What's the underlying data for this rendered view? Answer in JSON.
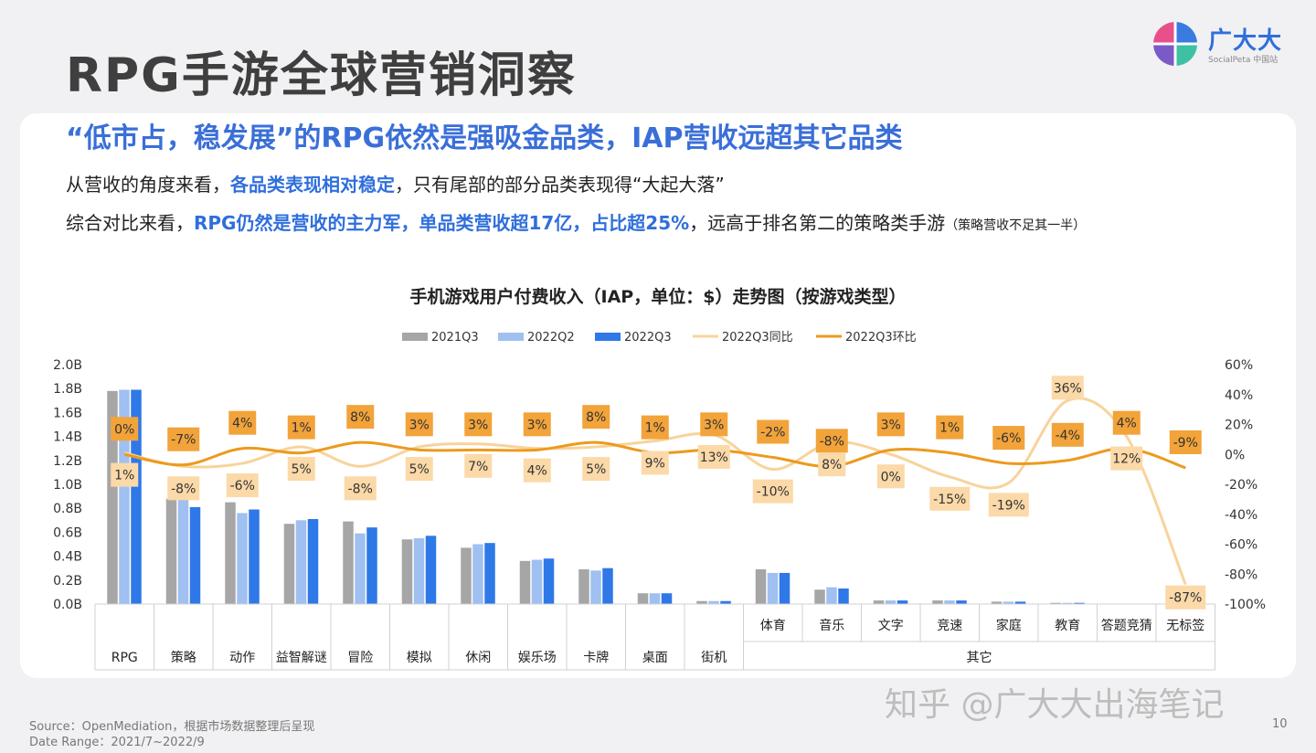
{
  "header": {
    "title": "RPG手游全球营销洞察",
    "logo_text": "广大大",
    "logo_sub": "SocialPeta 中国站"
  },
  "headline": "“低市占，稳发展”的RPG依然是强吸金品类，IAP营收远超其它品类",
  "body": {
    "line1": {
      "pre": "从营收的角度来看，",
      "hl": "各品类表现相对稳定",
      "post": "，只有尾部的部分品类表现得“大起大落”"
    },
    "line2": {
      "pre": "综合对比来看，",
      "hl": "RPG仍然是营收的主力军，单品类营收超17亿，占比超25%",
      "post": "，远高于排名第二的策略类手游",
      "note": "（策略营收不足其一半）"
    }
  },
  "footer": {
    "source": "Source：OpenMediation，根据市场数据整理后呈现",
    "range": "Date Range：2021/7~2022/9",
    "page": "10",
    "watermark": "知乎 @广大大出海笔记"
  },
  "colors": {
    "q2021q3": "#a6a6a6",
    "q2022q2": "#9fc0f0",
    "q2022q3": "#2f78e8",
    "yoy": "#f8d39a",
    "qoq": "#ec9a1e",
    "yoy_label_bg": "#fbd9a8",
    "qoq_label_bg": "#f2a33a"
  },
  "chart_data": {
    "type": "bar",
    "title": "手机游戏用户付费收入（IAP，单位：$）走势图（按游戏类型）",
    "categories": [
      "RPG",
      "策略",
      "动作",
      "益智解谜",
      "冒险",
      "模拟",
      "休闲",
      "娱乐场",
      "卡牌",
      "桌面",
      "街机",
      "体育",
      "音乐",
      "文字",
      "竞速",
      "家庭",
      "教育",
      "答题竞猜",
      "无标签"
    ],
    "group_label": "其它",
    "y_left_ticks": [
      "0.0B",
      "0.2B",
      "0.4B",
      "0.6B",
      "0.8B",
      "1.0B",
      "1.2B",
      "1.4B",
      "1.6B",
      "1.8B",
      "2.0B"
    ],
    "y_right_ticks": [
      "-100%",
      "-80%",
      "-60%",
      "-40%",
      "-20%",
      "0%",
      "20%",
      "40%",
      "60%"
    ],
    "ylim_left": [
      0,
      2.0
    ],
    "ylim_right": [
      -100,
      60
    ],
    "series": [
      {
        "name": "2021Q3",
        "kind": "bar",
        "values": [
          1.78,
          0.88,
          0.85,
          0.67,
          0.69,
          0.54,
          0.47,
          0.36,
          0.29,
          0.09,
          0.025,
          0.29,
          0.12,
          0.03,
          0.03,
          0.02,
          0.01,
          0.0,
          0.0
        ]
      },
      {
        "name": "2022Q2",
        "kind": "bar",
        "values": [
          1.79,
          0.88,
          0.76,
          0.7,
          0.59,
          0.55,
          0.5,
          0.37,
          0.28,
          0.09,
          0.025,
          0.26,
          0.14,
          0.03,
          0.03,
          0.02,
          0.01,
          0.0,
          0.0
        ]
      },
      {
        "name": "2022Q3",
        "kind": "bar",
        "values": [
          1.79,
          0.81,
          0.79,
          0.71,
          0.64,
          0.57,
          0.51,
          0.38,
          0.3,
          0.09,
          0.025,
          0.26,
          0.13,
          0.03,
          0.03,
          0.02,
          0.01,
          0.0,
          0.0
        ]
      },
      {
        "name": "2022Q3同比",
        "kind": "line",
        "axis": "right",
        "values": [
          1,
          -8,
          -6,
          5,
          -8,
          5,
          7,
          4,
          5,
          9,
          13,
          -10,
          8,
          0,
          -15,
          -19,
          36,
          12,
          -87
        ],
        "labels": [
          "1%",
          "-8%",
          "-6%",
          "5%",
          "-8%",
          "5%",
          "7%",
          "4%",
          "5%",
          "9%",
          "13%",
          "-10%",
          "8%",
          "0%",
          "-15%",
          "-19%",
          "36%",
          "12%",
          "-87%"
        ]
      },
      {
        "name": "2022Q3环比",
        "kind": "line",
        "axis": "right",
        "values": [
          0,
          -7,
          4,
          1,
          8,
          3,
          3,
          3,
          8,
          1,
          3,
          -2,
          -8,
          3,
          1,
          -6,
          -4,
          4,
          -9
        ],
        "labels": [
          "0%",
          "-7%",
          "4%",
          "1%",
          "8%",
          "3%",
          "3%",
          "3%",
          "8%",
          "1%",
          "3%",
          "-2%",
          "-8%",
          "3%",
          "1%",
          "-6%",
          "-4%",
          "4%",
          "-9%"
        ]
      }
    ],
    "legend_position": "top"
  }
}
